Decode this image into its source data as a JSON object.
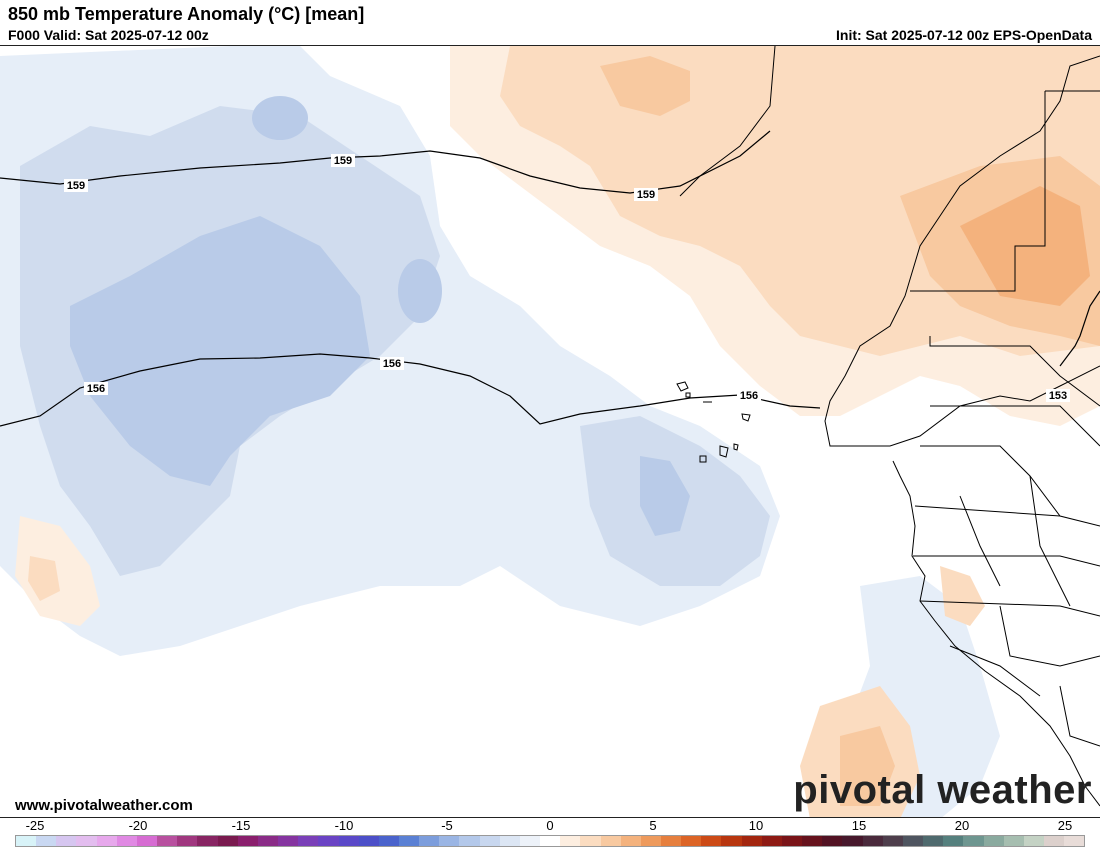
{
  "header": {
    "title": "850 mb Temperature Anomaly (°C) [mean]",
    "valid": "F000 Valid: Sat 2025-07-12 00z",
    "init": "Init: Sat 2025-07-12 00z EPS-OpenData"
  },
  "map": {
    "contour_labels": [
      "159",
      "159",
      "159",
      "156",
      "156",
      "156",
      "153"
    ]
  },
  "footer": {
    "website": "www.pivotalweather.com",
    "logo": "pivotal weather"
  },
  "colorbar": {
    "ticks": [
      "-25",
      "-20",
      "-15",
      "-10",
      "-5",
      "0",
      "5",
      "10",
      "15",
      "20",
      "25"
    ],
    "colors": [
      "#d8f3f8",
      "#c9d8f2",
      "#d6c6f0",
      "#e3bdef",
      "#e7a8ec",
      "#e089e3",
      "#d66cd2",
      "#b8509f",
      "#a0377f",
      "#882563",
      "#7a1a4f",
      "#8a1f6d",
      "#8a2b87",
      "#8534a0",
      "#7a3fb8",
      "#6a43c4",
      "#5a48c8",
      "#4c4fc8",
      "#4a63cc",
      "#5a80d4",
      "#7c9ddc",
      "#9ab5e4",
      "#b3c8ea",
      "#c8d7ef",
      "#dce6f4",
      "#edf2f9",
      "#ffffff",
      "#fdeee0",
      "#fbdcc0",
      "#f8c9a0",
      "#f4b27d",
      "#ee9a5c",
      "#e67f3e",
      "#dc6426",
      "#cc4a16",
      "#b8360f",
      "#a3260f",
      "#8e1a14",
      "#7a1418",
      "#66121d",
      "#521223",
      "#47182c",
      "#4a2a3c",
      "#4e3e4c",
      "#4f5560",
      "#4f6a6e",
      "#55807e",
      "#6e9690",
      "#8aaa9f",
      "#a6beb0",
      "#c4d2c4",
      "#dcd0cc",
      "#e8dcd8"
    ]
  }
}
